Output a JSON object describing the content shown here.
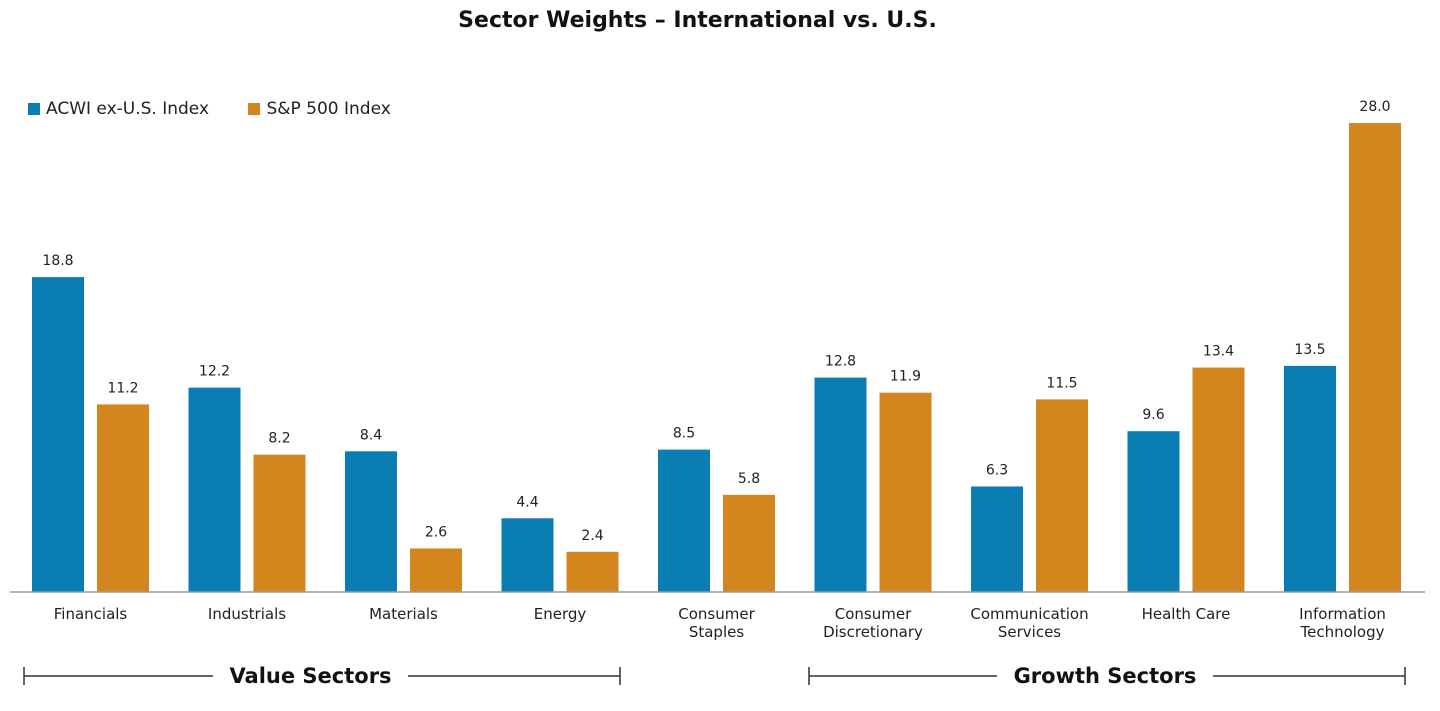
{
  "chart_data": {
    "type": "bar",
    "title": "Sector Weights – International vs. U.S.",
    "categories": [
      [
        "Financials"
      ],
      [
        "Industrials"
      ],
      [
        "Materials"
      ],
      [
        "Energy"
      ],
      [
        "Consumer",
        "Staples"
      ],
      [
        "Consumer",
        "Discretionary"
      ],
      [
        "Communication",
        "Services"
      ],
      [
        "Health Care"
      ],
      [
        "Information",
        "Technology"
      ]
    ],
    "series": [
      {
        "name": "ACWI ex-U.S. Index",
        "color": "#0a7db3",
        "values": [
          18.8,
          12.2,
          8.4,
          4.4,
          8.5,
          12.8,
          6.3,
          9.6,
          13.5
        ]
      },
      {
        "name": "S&P 500 Index",
        "color": "#d4861e",
        "values": [
          11.2,
          8.2,
          2.6,
          2.4,
          5.8,
          11.9,
          11.5,
          13.4,
          28.0
        ]
      }
    ],
    "value_labels": [
      [
        "18.8",
        "12.2",
        "8.4",
        "4.4",
        "8.5",
        "12.8",
        "6.3",
        "9.6",
        "13.5"
      ],
      [
        "11.2",
        "8.2",
        "2.6",
        "2.4",
        "5.8",
        "11.9",
        "11.5",
        "13.4",
        "28.0"
      ]
    ],
    "ylim": [
      0,
      28
    ],
    "legend_position": "top-left",
    "grid": false,
    "groups": [
      {
        "label": "Value Sectors",
        "categories": [
          "Financials",
          "Industrials",
          "Materials",
          "Energy"
        ]
      },
      {
        "label": "Growth Sectors",
        "categories": [
          "Consumer Discretionary",
          "Communication Services",
          "Health Care",
          "Information Technology"
        ]
      }
    ]
  }
}
